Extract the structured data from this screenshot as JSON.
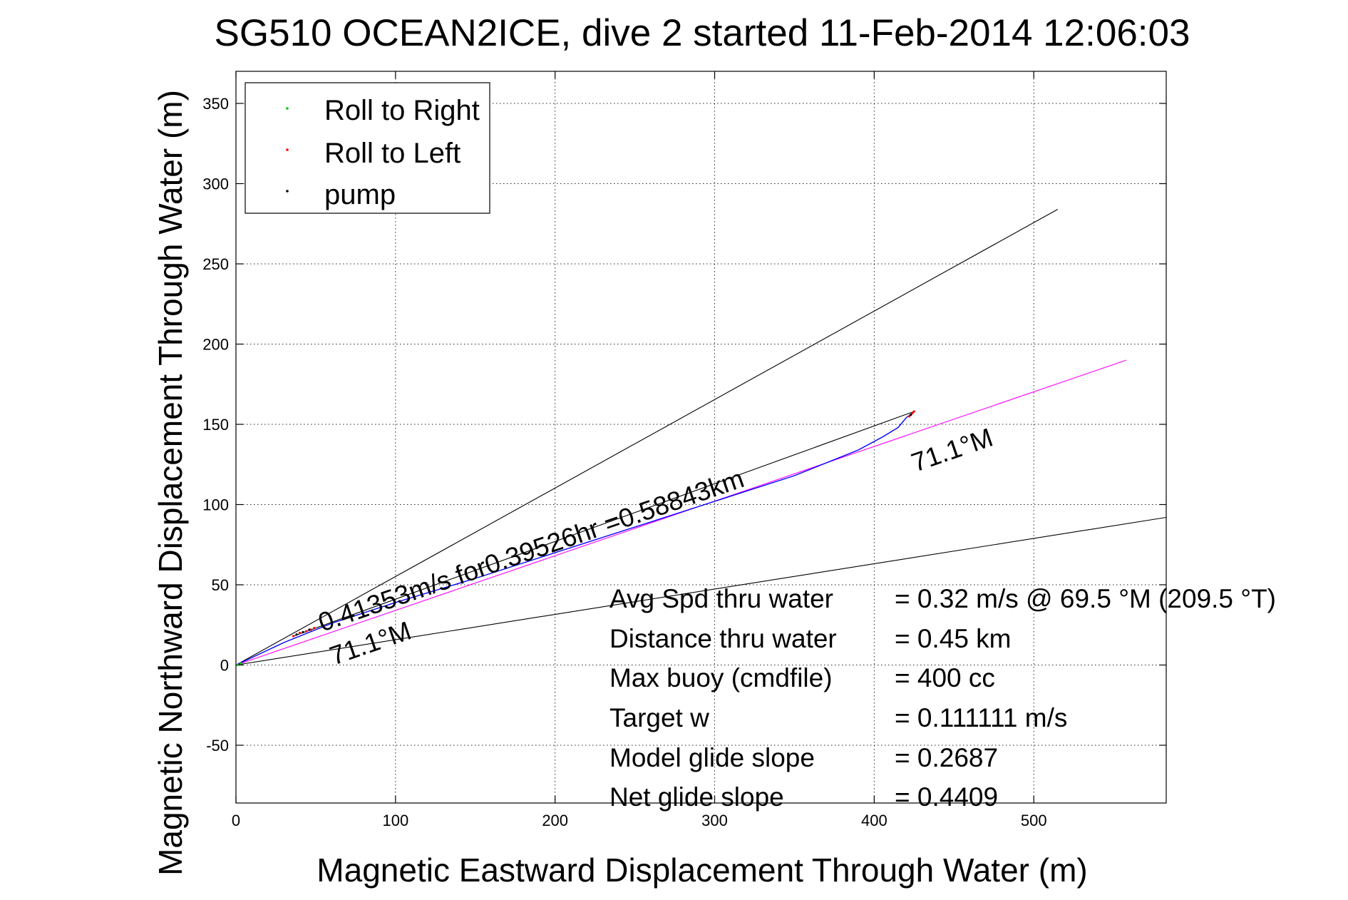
{
  "chart_data": {
    "type": "line",
    "title": "SG510 OCEAN2ICE, dive 2 started 11-Feb-2014 12:06:03",
    "xlabel": "Magnetic Eastward Displacement Through Water (m)",
    "ylabel": "Magnetic Northward Displacement Through Water (m)",
    "xlim": [
      0,
      583
    ],
    "ylim": [
      -86,
      370
    ],
    "xticks": [
      0,
      100,
      200,
      300,
      400,
      500
    ],
    "yticks": [
      -50,
      0,
      50,
      100,
      150,
      200,
      250,
      300,
      350
    ],
    "grid": true,
    "legend": {
      "placement": "top-left",
      "entries": [
        {
          "label": "Roll to Right",
          "color": "#00cc00"
        },
        {
          "label": "Roll to Left",
          "color": "#ff0000"
        },
        {
          "label": "pump",
          "color": "#000000"
        }
      ]
    },
    "series": [
      {
        "role": "glider-track",
        "color": "#0000ff",
        "x": [
          0,
          30,
          60,
          100,
          150,
          200,
          250,
          300,
          350,
          390,
          405,
          415,
          420,
          425
        ],
        "y": [
          0,
          14,
          26,
          39,
          54,
          70,
          86,
          102,
          118,
          134,
          142,
          148,
          154,
          158
        ]
      },
      {
        "role": "heading-line",
        "color": "#ff00ff",
        "x": [
          0,
          558
        ],
        "y": [
          0,
          190
        ]
      },
      {
        "role": "envelope-upper",
        "color": "#000000",
        "x": [
          0,
          515
        ],
        "y": [
          0,
          284
        ]
      },
      {
        "role": "envelope-lower",
        "color": "#000000",
        "x": [
          0,
          583
        ],
        "y": [
          0,
          92
        ]
      },
      {
        "role": "model-path",
        "color": "#000000",
        "x": [
          36,
          425
        ],
        "y": [
          18,
          158
        ]
      }
    ],
    "markers": {
      "roll_right": {
        "color": "#00cc00",
        "x": [
          1,
          3
        ],
        "y": [
          0,
          1
        ]
      },
      "roll_left": {
        "color": "#ff0000",
        "x": [
          36,
          40,
          44,
          47,
          49,
          422,
          424,
          425
        ],
        "y": [
          18,
          20,
          21,
          22,
          23,
          155,
          157,
          158
        ]
      },
      "pump": {
        "color": "#000000",
        "x": [
          38,
          42,
          46,
          423
        ],
        "y": [
          19,
          20.5,
          22,
          156
        ]
      }
    },
    "annotations": {
      "speed_label": "0.41353m/s for0.39526hr =0.58843km",
      "heading_upper": "71.1°M",
      "heading_lower": "71.1°M"
    },
    "stats": [
      {
        "label": "Avg Spd thru water",
        "value": "=  0.32 m/s @  69.5 °M (209.5 °T)"
      },
      {
        "label": "Distance thru water",
        "value": "=  0.45 km"
      },
      {
        "label": "Max buoy (cmdfile)",
        "value": "= 400 cc"
      },
      {
        "label": "Target w",
        "value": "= 0.111111 m/s"
      },
      {
        "label": "Model glide slope",
        "value": "= 0.2687"
      },
      {
        "label": "Net glide slope",
        "value": "= 0.4409"
      }
    ]
  }
}
